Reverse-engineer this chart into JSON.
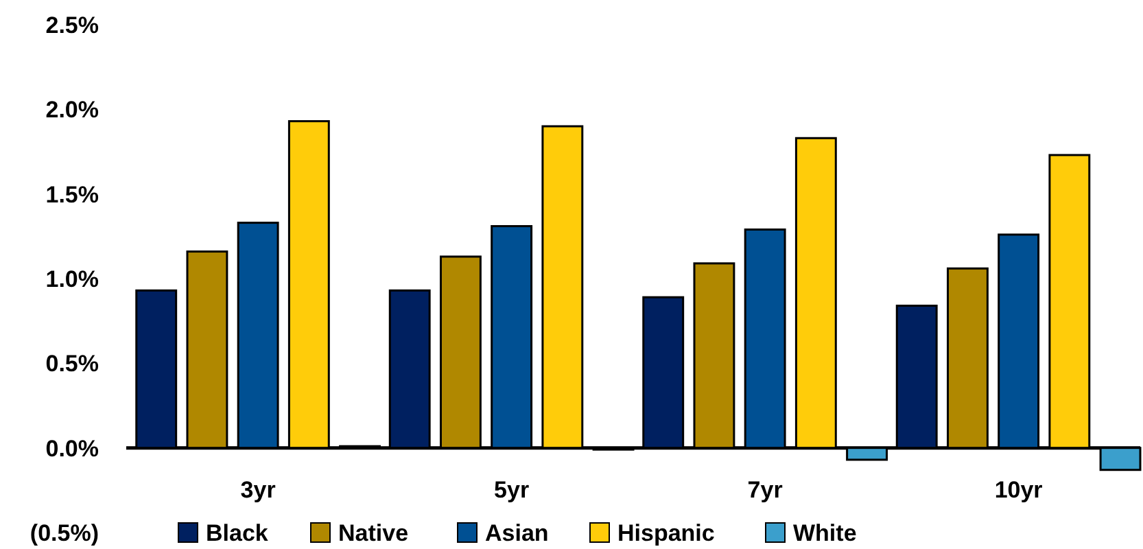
{
  "chart_data": {
    "type": "bar",
    "categories": [
      "3yr",
      "5yr",
      "7yr",
      "10yr"
    ],
    "series": [
      {
        "name": "Black",
        "color": "#002060",
        "values": [
          0.93,
          0.93,
          0.89,
          0.84
        ]
      },
      {
        "name": "Native",
        "color": "#b08800",
        "values": [
          1.16,
          1.13,
          1.09,
          1.06
        ]
      },
      {
        "name": "Asian",
        "color": "#005093",
        "values": [
          1.33,
          1.31,
          1.29,
          1.26
        ]
      },
      {
        "name": "Hispanic",
        "color": "#ffcc0a",
        "values": [
          1.93,
          1.9,
          1.83,
          1.73
        ]
      },
      {
        "name": "White",
        "color": "#3b9fcc",
        "values": [
          0.01,
          -0.01,
          -0.07,
          -0.13
        ]
      }
    ],
    "ylim": [
      -0.5,
      2.5
    ],
    "yticks": [
      {
        "value": -0.5,
        "label": "(0.5%)"
      },
      {
        "value": 0,
        "label": "0.0%"
      },
      {
        "value": 0.5,
        "label": "0.5%"
      },
      {
        "value": 1,
        "label": "1.0%"
      },
      {
        "value": 1.5,
        "label": "1.5%"
      },
      {
        "value": 2,
        "label": "2.0%"
      },
      {
        "value": 2.5,
        "label": "2.5%"
      }
    ],
    "legend": "bottom"
  }
}
